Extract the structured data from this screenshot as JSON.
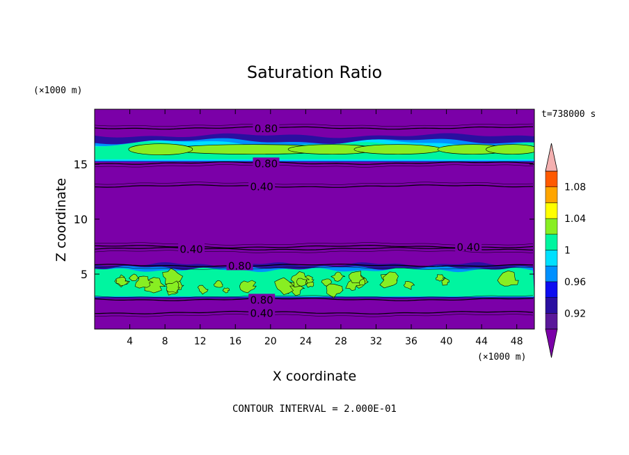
{
  "chart_data": {
    "type": "heatmap",
    "title": "Saturation Ratio",
    "xlabel": "X coordinate",
    "ylabel": "Z coordinate",
    "x_unit": "(×1000 m)",
    "y_unit": "(×1000 m)",
    "time_label": "t=738000 s",
    "footer": "CONTOUR INTERVAL = 2.000E-01",
    "xlim": [
      0,
      50
    ],
    "ylim": [
      0,
      20
    ],
    "x_ticks": [
      4,
      8,
      12,
      16,
      20,
      24,
      28,
      32,
      36,
      40,
      44,
      48
    ],
    "y_ticks": [
      5,
      10,
      15
    ],
    "background_color": "#7b00a8",
    "colorbar": {
      "levels": [
        0.9,
        0.92,
        0.94,
        0.96,
        0.98,
        1.0,
        1.02,
        1.04,
        1.06,
        1.08,
        1.1
      ],
      "tick_labels": [
        "0.92",
        "0.96",
        "1",
        "1.04",
        "1.08"
      ],
      "colors": [
        "#5a189a",
        "#2a0fa0",
        "#0d0df0",
        "#0090ff",
        "#00e0ff",
        "#00f5a0",
        "#88ee22",
        "#ffff00",
        "#ffa500",
        "#ff5a00",
        "#ff1a1a"
      ],
      "under_color": "#7b00a8",
      "over_color": "#f4b0b0"
    },
    "bands": [
      {
        "name": "upper",
        "z_range": [
          15.2,
          17.6
        ]
      },
      {
        "name": "lower",
        "z_range": [
          2.9,
          5.7
        ]
      }
    ],
    "contours": [
      {
        "value": "0.80",
        "z": 18.3,
        "label_x": 19.5
      },
      {
        "value": "0.80",
        "z": 15.1,
        "label_x": 19.5
      },
      {
        "value": "0.40",
        "z": 13.0,
        "label_x": 19.0
      },
      {
        "value": "0.40",
        "z": 7.3,
        "label_x": 11.0
      },
      {
        "value": "0.40",
        "z": 7.5,
        "label_x": 42.5
      },
      {
        "value": "0.80",
        "z": 5.8,
        "label_x": 16.5
      },
      {
        "value": "0.80",
        "z": 2.7,
        "label_x": 19.0
      },
      {
        "value": "0.40",
        "z": 1.5,
        "label_x": 19.0
      }
    ]
  }
}
